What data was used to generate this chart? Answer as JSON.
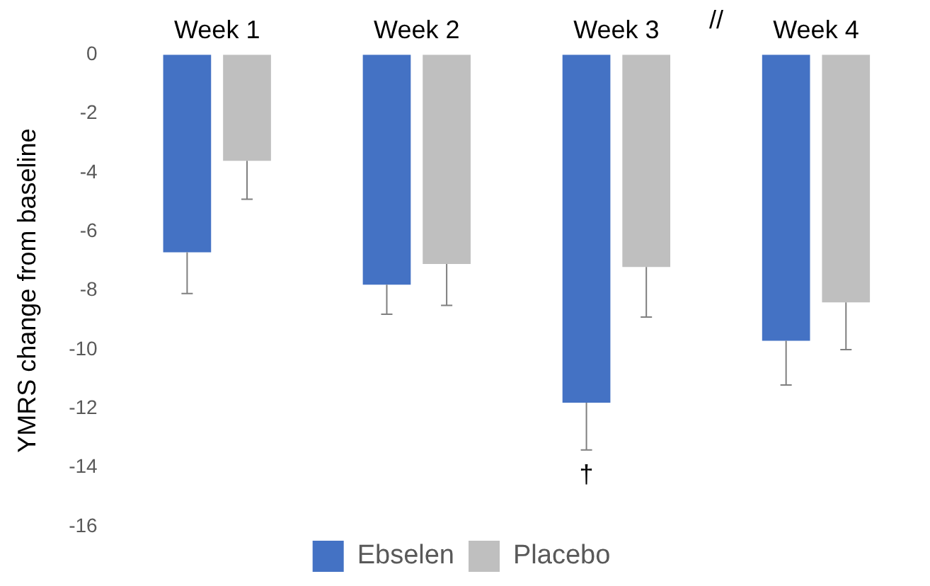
{
  "chart_data": {
    "type": "bar",
    "ylabel": "YMRS change from baseline",
    "categories": [
      "Week 1",
      "Week 2",
      "Week 3",
      "Week 4"
    ],
    "series": [
      {
        "name": "Ebselen",
        "color": "#4472c4",
        "values": [
          -6.7,
          -7.8,
          -11.8,
          -9.7
        ],
        "errors": [
          [
            -8.1,
            -6.7
          ],
          [
            -8.8,
            -7.8
          ],
          [
            -13.4,
            -11.8
          ],
          [
            -11.2,
            -9.7
          ]
        ]
      },
      {
        "name": "Placebo",
        "color": "#bfbfbf",
        "values": [
          -3.6,
          -7.1,
          -7.2,
          -8.4
        ],
        "errors": [
          [
            -4.9,
            -3.6
          ],
          [
            -8.5,
            -7.1
          ],
          [
            -8.9,
            -7.2
          ],
          [
            -10.0,
            -8.4
          ]
        ]
      }
    ],
    "ylim": [
      -16,
      0
    ],
    "yticks": [
      -16,
      -14,
      -12,
      -10,
      -8,
      -6,
      -4,
      -2,
      0
    ],
    "grid": false,
    "legend": "bottom",
    "annotations": [
      "//",
      "†"
    ]
  }
}
